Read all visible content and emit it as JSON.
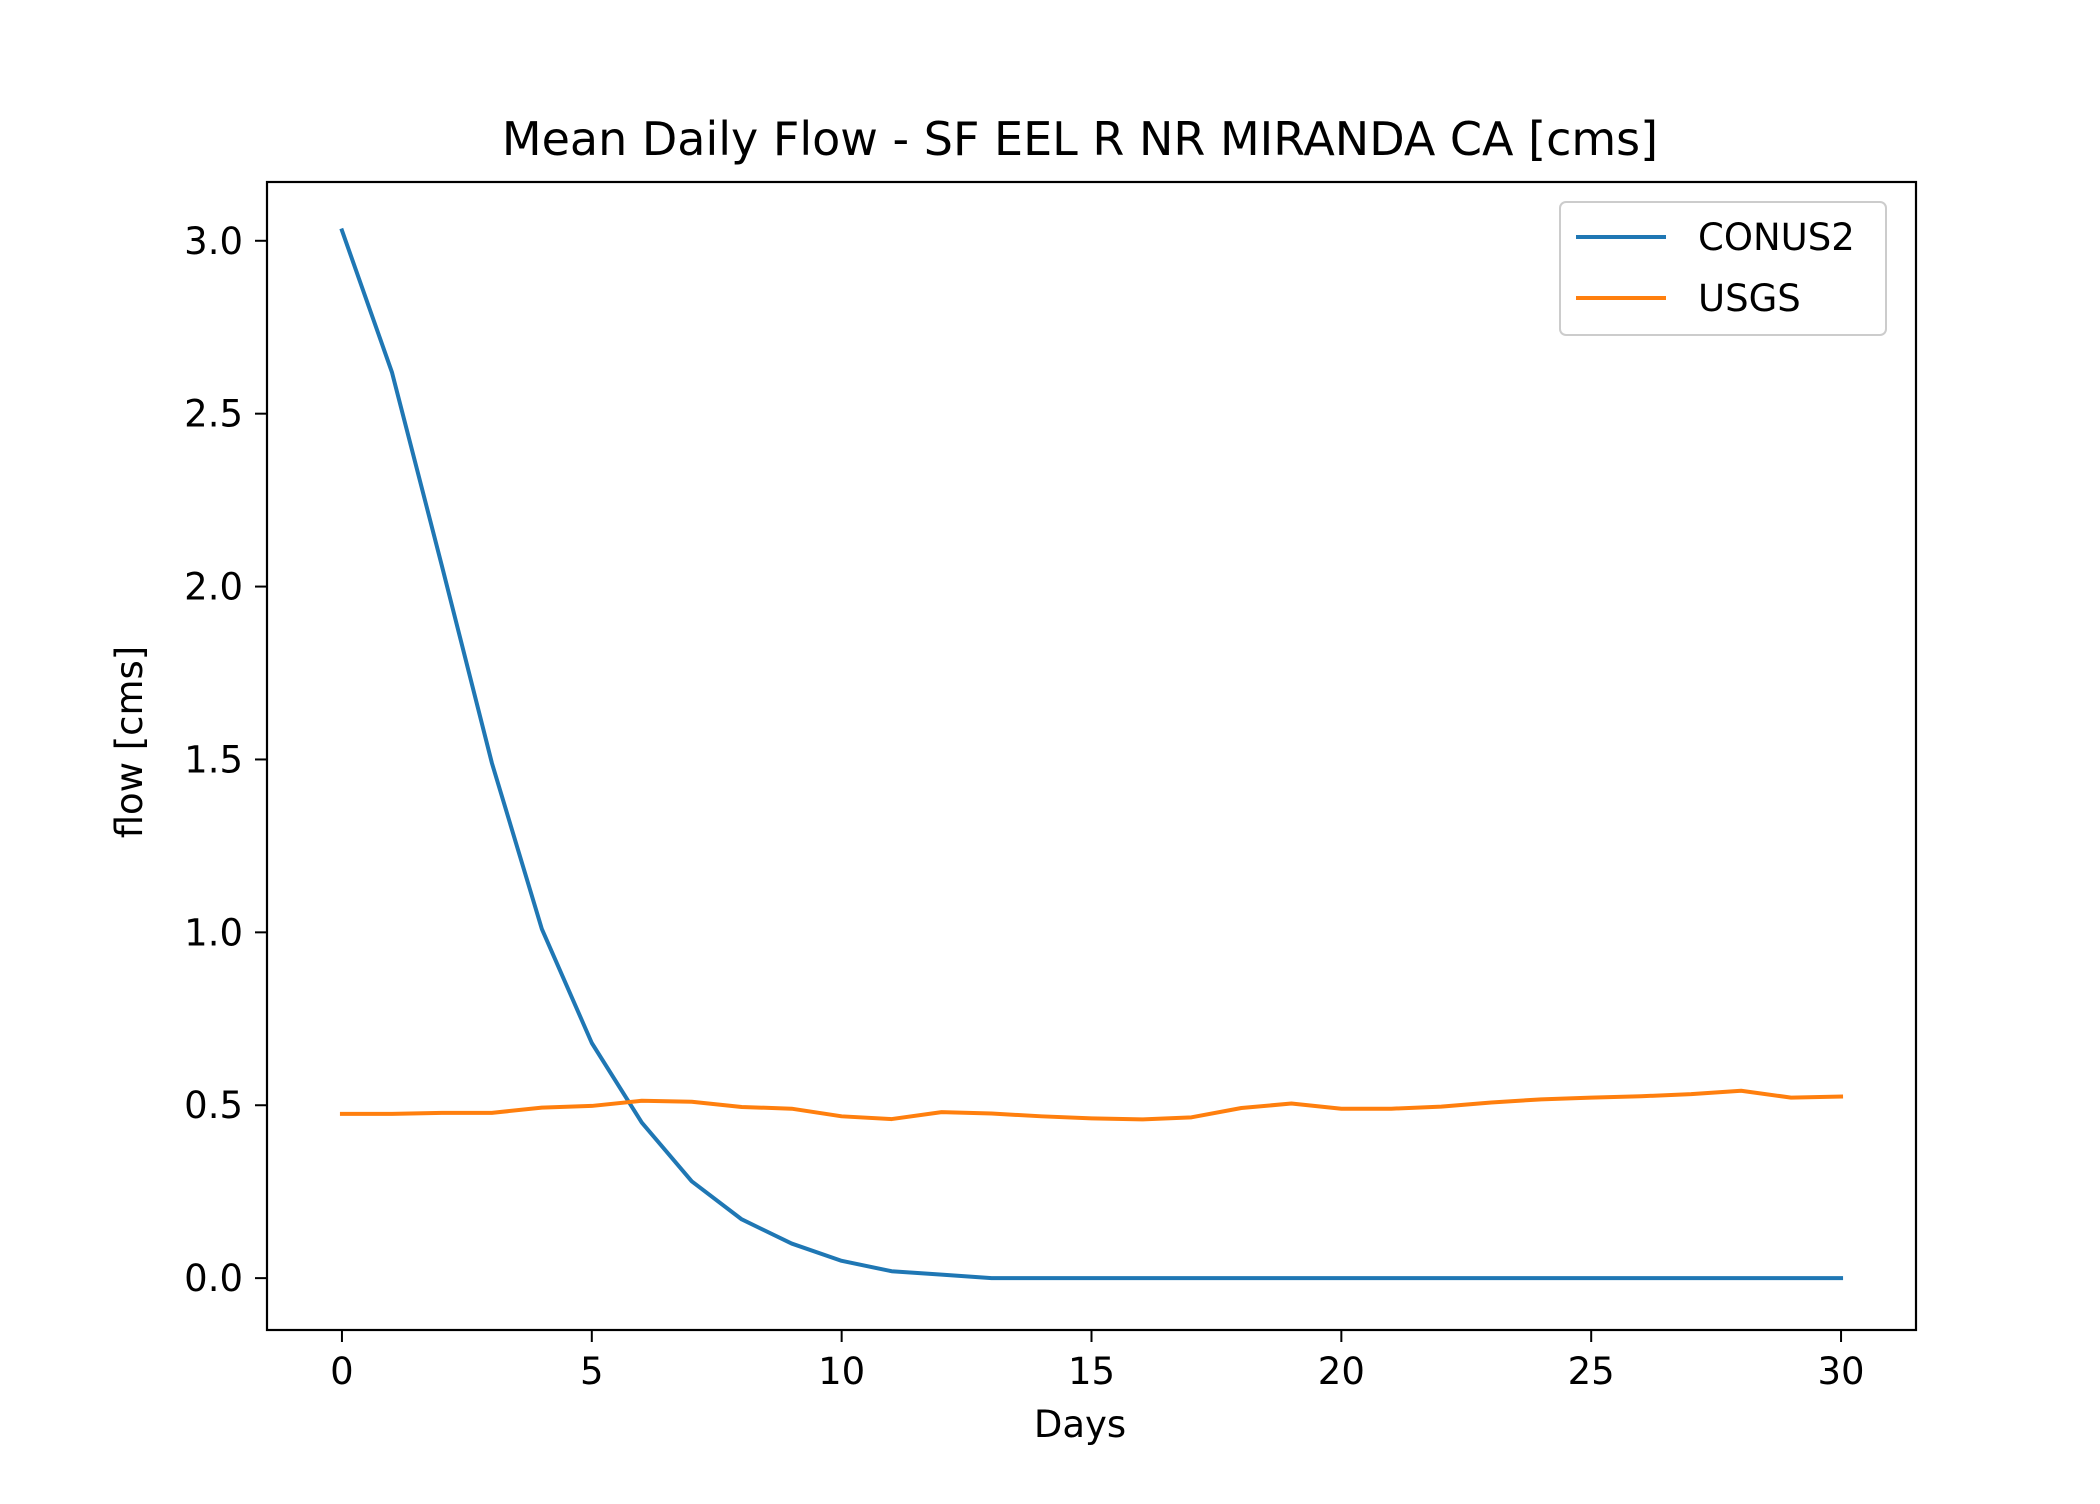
{
  "chart_data": {
    "type": "line",
    "title": "Mean Daily Flow - SF EEL R NR MIRANDA CA [cms]",
    "xlabel": "Days",
    "ylabel": "flow [cms]",
    "xlim": [
      -1.5,
      31.5
    ],
    "ylim": [
      -0.15,
      3.17
    ],
    "xticks": [
      0,
      5,
      10,
      15,
      20,
      25,
      30
    ],
    "xtick_labels": [
      "0",
      "5",
      "10",
      "15",
      "20",
      "25",
      "30"
    ],
    "yticks": [
      0.0,
      0.5,
      1.0,
      1.5,
      2.0,
      2.5,
      3.0
    ],
    "ytick_labels": [
      "0.0",
      "0.5",
      "1.0",
      "1.5",
      "2.0",
      "2.5",
      "3.0"
    ],
    "grid": false,
    "legend_position": "top-right",
    "x": [
      0,
      1,
      2,
      3,
      4,
      5,
      6,
      7,
      8,
      9,
      10,
      11,
      12,
      13,
      14,
      15,
      16,
      17,
      18,
      19,
      20,
      21,
      22,
      23,
      24,
      25,
      26,
      27,
      28,
      29,
      30
    ],
    "series": [
      {
        "name": "CONUS2",
        "color": "#1f77b4",
        "values": [
          3.03,
          2.62,
          2.06,
          1.49,
          1.01,
          0.68,
          0.45,
          0.28,
          0.17,
          0.1,
          0.05,
          0.02,
          0.01,
          0.0,
          0.0,
          0.0,
          0.0,
          0.0,
          0.0,
          0.0,
          0.0,
          0.0,
          0.0,
          0.0,
          0.0,
          0.0,
          0.0,
          0.0,
          0.0,
          0.0,
          0.0
        ]
      },
      {
        "name": "USGS",
        "color": "#ff7f0e",
        "values": [
          0.475,
          0.475,
          0.478,
          0.478,
          0.493,
          0.498,
          0.513,
          0.51,
          0.495,
          0.49,
          0.468,
          0.46,
          0.48,
          0.476,
          0.468,
          0.462,
          0.459,
          0.465,
          0.492,
          0.505,
          0.49,
          0.49,
          0.496,
          0.508,
          0.517,
          0.522,
          0.526,
          0.532,
          0.542,
          0.522,
          0.525
        ]
      }
    ]
  }
}
